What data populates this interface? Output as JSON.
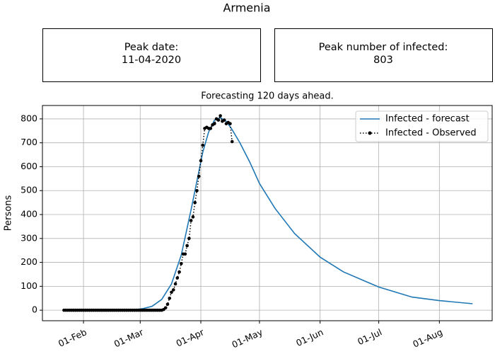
{
  "chart_data": {
    "type": "line",
    "title": "Armenia",
    "subtitle": "Forecasting 120 days ahead.",
    "annotations": [
      {
        "label": "Peak date:",
        "text": "11-04-2020"
      },
      {
        "label": "Peak number of infected:",
        "text": 803
      }
    ],
    "y_label": "Persons",
    "grid": true,
    "legend": "upper right",
    "xlim": [
      11,
      241
    ],
    "ylim": [
      -44,
      856
    ],
    "xticks": [
      {
        "value": 32,
        "label": "01-Feb"
      },
      {
        "value": 61,
        "label": "01-Mar"
      },
      {
        "value": 92,
        "label": "01-Apr"
      },
      {
        "value": 122,
        "label": "01-May"
      },
      {
        "value": 153,
        "label": "01-Jun"
      },
      {
        "value": 183,
        "label": "01-Jul"
      },
      {
        "value": 214,
        "label": "01-Aug"
      }
    ],
    "yticks": [
      0,
      100,
      200,
      300,
      400,
      500,
      600,
      700,
      800
    ],
    "series": [
      {
        "name": "Infected - forecast",
        "color": "#1f77b4",
        "style": "solid",
        "x": [
          22,
          30,
          40,
          50,
          57,
          62,
          67,
          72,
          77,
          82,
          87,
          90,
          93,
          96,
          99,
          102,
          105,
          108,
          112,
          117,
          122,
          130,
          140,
          153,
          165,
          183,
          200,
          214,
          231
        ],
        "values": [
          0,
          0,
          0,
          0,
          1,
          6,
          16,
          45,
          110,
          230,
          420,
          540,
          660,
          745,
          795,
          805,
          790,
          755,
          700,
          620,
          530,
          425,
          320,
          222,
          160,
          97,
          55,
          40,
          27
        ]
      },
      {
        "name": "Infected - Observed",
        "color": "#000000",
        "style": "dotted-markers",
        "x": [
          22,
          23,
          24,
          25,
          26,
          27,
          28,
          29,
          30,
          31,
          32,
          33,
          34,
          35,
          36,
          37,
          38,
          39,
          40,
          41,
          42,
          43,
          44,
          45,
          46,
          47,
          48,
          49,
          50,
          51,
          52,
          53,
          54,
          55,
          56,
          57,
          58,
          59,
          60,
          61,
          62,
          63,
          64,
          65,
          66,
          67,
          68,
          69,
          70,
          71,
          72,
          73,
          74,
          75,
          76,
          77,
          78,
          79,
          80,
          81,
          82,
          83,
          84,
          85,
          86,
          87,
          88,
          89,
          90,
          91,
          92,
          93,
          94,
          95,
          96,
          97,
          98,
          99,
          100,
          101,
          102,
          103,
          104,
          105,
          106,
          107,
          108
        ],
        "values": [
          0,
          0,
          0,
          0,
          0,
          0,
          0,
          0,
          0,
          0,
          0,
          0,
          0,
          0,
          0,
          0,
          0,
          0,
          0,
          0,
          0,
          0,
          0,
          0,
          0,
          0,
          0,
          0,
          0,
          0,
          0,
          0,
          0,
          0,
          0,
          0,
          0,
          0,
          0,
          0,
          0,
          0,
          0,
          0,
          0,
          0,
          0,
          0,
          0,
          0,
          0,
          3,
          10,
          25,
          50,
          75,
          85,
          110,
          135,
          160,
          195,
          235,
          235,
          270,
          300,
          375,
          390,
          450,
          500,
          560,
          625,
          690,
          760,
          765,
          760,
          760,
          775,
          780,
          800,
          795,
          813,
          790,
          795,
          780,
          785,
          780,
          705
        ]
      }
    ]
  }
}
